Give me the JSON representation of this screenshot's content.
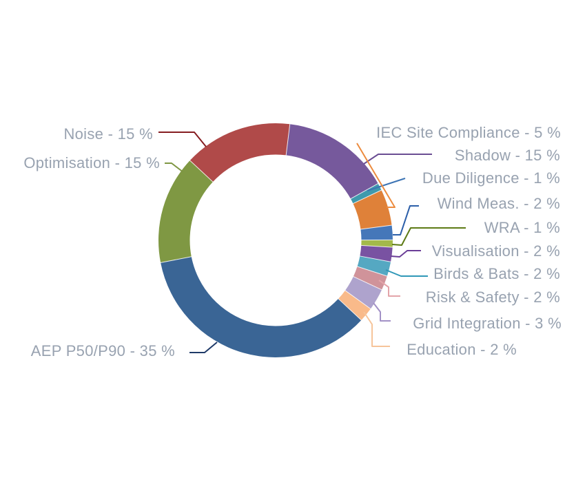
{
  "page": {
    "background_color": "#ffffff",
    "label_text_color": "#98a2b0"
  },
  "chart_data": {
    "type": "pie",
    "variant": "donut",
    "direction": "clockwise",
    "start_angle_deg": 7,
    "unit": "%",
    "title": "",
    "legend_position": "callout-labels",
    "categories": [
      "Shadow",
      "Due Diligence",
      "IEC Site Compliance",
      "Wind Meas.",
      "WRA",
      "Visualisation",
      "Birds & Bats",
      "Risk & Safety",
      "Grid Integration",
      "Education",
      "AEP P50/P90",
      "Optimisation",
      "Noise"
    ],
    "values": [
      15,
      1,
      5,
      2,
      1,
      2,
      2,
      2,
      3,
      2,
      35,
      15,
      15
    ],
    "segments": [
      {
        "id": "shadow",
        "name": "Shadow",
        "value": 15,
        "label": "Shadow - 15 %",
        "color": "#76599c",
        "leader_color": "#6a4d93"
      },
      {
        "id": "due_diligence",
        "name": "Due Diligence",
        "value": 1,
        "label": "Due Diligence - 1 %",
        "color": "#3f9aad",
        "leader_color": "#3c74b4"
      },
      {
        "id": "iec_site_compliance",
        "name": "IEC Site Compliance",
        "value": 5,
        "label": "IEC Site Compliance - 5 %",
        "color": "#df8139",
        "leader_color": "#ec8b3e"
      },
      {
        "id": "wind_meas",
        "name": "Wind Meas.",
        "value": 2,
        "label": "Wind Meas. - 2 %",
        "color": "#4577b9",
        "leader_color": "#2c5fa9"
      },
      {
        "id": "wra",
        "name": "WRA",
        "value": 1,
        "label": "WRA - 1 %",
        "color": "#a3b94a",
        "leader_color": "#5d7a15"
      },
      {
        "id": "visualisation",
        "name": "Visualisation",
        "value": 2,
        "label": "Visualisation - 2 %",
        "color": "#7952a2",
        "leader_color": "#6a3d97"
      },
      {
        "id": "birds_bats",
        "name": "Birds & Bats",
        "value": 2,
        "label": "Birds & Bats - 2 %",
        "color": "#55a8c2",
        "leader_color": "#2e97b7"
      },
      {
        "id": "risk_safety",
        "name": "Risk & Safety",
        "value": 2,
        "label": "Risk & Safety - 2 %",
        "color": "#d0939a",
        "leader_color": "#e3a4a9"
      },
      {
        "id": "grid_integration",
        "name": "Grid Integration",
        "value": 3,
        "label": "Grid Integration - 3 %",
        "color": "#aea3cd",
        "leader_color": "#a291c6"
      },
      {
        "id": "education",
        "name": "Education",
        "value": 2,
        "label": "Education - 2 %",
        "color": "#f9ba8a",
        "leader_color": "#f6c49a"
      },
      {
        "id": "aep_p50_p90",
        "name": "AEP P50/P90",
        "value": 35,
        "label": "AEP P50/P90 - 35 %",
        "color": "#3a6595",
        "leader_color": "#1f3a68"
      },
      {
        "id": "optimisation",
        "name": "Optimisation",
        "value": 15,
        "label": "Optimisation - 15 %",
        "color": "#7f9843",
        "leader_color": "#7e9642"
      },
      {
        "id": "noise",
        "name": "Noise",
        "value": 15,
        "label": "Noise - 15 %",
        "color": "#b04a49",
        "leader_color": "#851c20"
      }
    ]
  }
}
